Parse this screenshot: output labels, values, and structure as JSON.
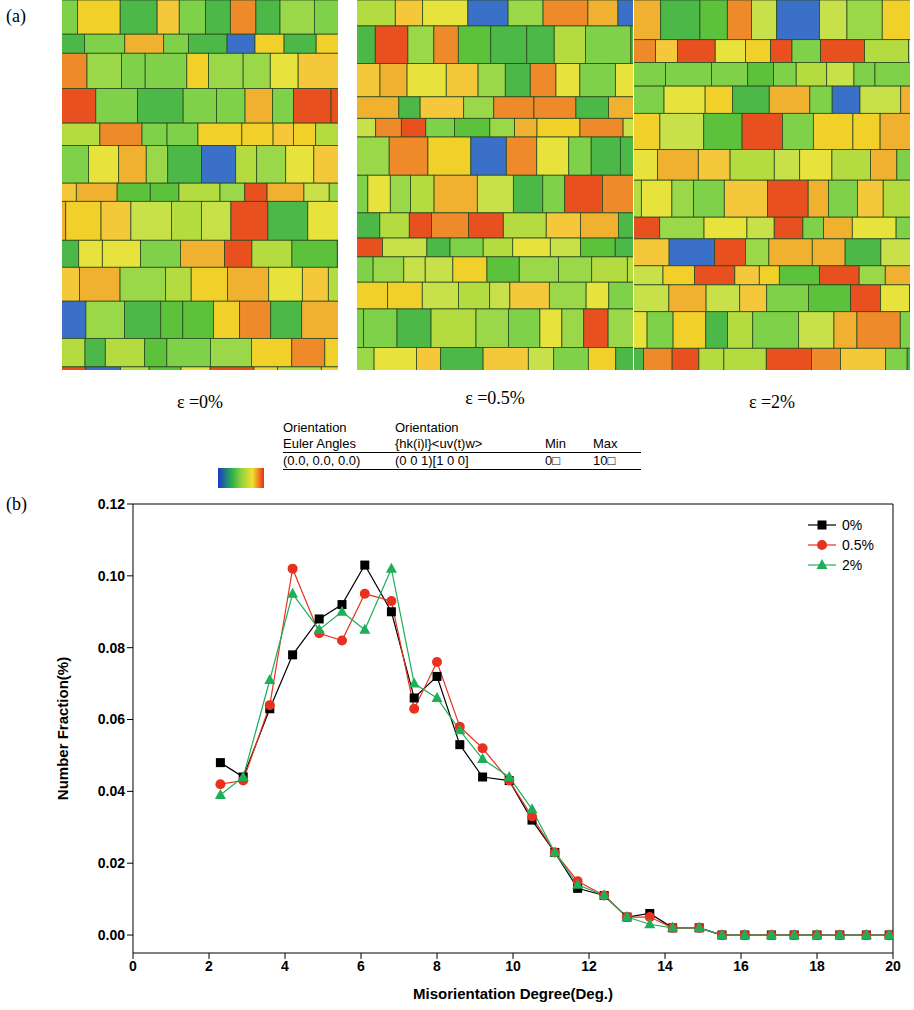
{
  "figure": {
    "panel_a": {
      "label": "(a)",
      "maps": [
        {
          "label": "ε =0%"
        },
        {
          "label": "ε =0.5%"
        },
        {
          "label": "ε =2%"
        }
      ],
      "color_key": {
        "header_top": [
          "Orientation",
          "Orientation"
        ],
        "header": [
          "Euler Angles",
          "{hk(i)l}<uv(t)w>",
          "Min",
          "Max"
        ],
        "row": [
          "(0.0, 0.0, 0.0)",
          "(0 0 1)[1 0 0]",
          "0□",
          "10□"
        ]
      }
    },
    "panel_b": {
      "label": "(b)"
    }
  },
  "chart_data": {
    "type": "line",
    "x_label": "Misorientation Degree(Deg.)",
    "y_label": "Number Fraction(%)",
    "x": [
      2.3,
      2.9,
      3.6,
      4.2,
      4.9,
      5.5,
      6.1,
      6.8,
      7.4,
      8.0,
      8.6,
      9.2,
      9.9,
      10.5,
      11.1,
      11.7,
      12.4,
      13.0,
      13.6,
      14.2,
      14.9,
      15.5,
      16.1,
      16.8,
      17.4,
      18.0,
      18.6,
      19.3,
      19.9
    ],
    "series": [
      {
        "name": "0%",
        "color": "#000000",
        "marker": "square",
        "values": [
          0.048,
          0.044,
          0.063,
          0.078,
          0.088,
          0.092,
          0.103,
          0.09,
          0.066,
          0.072,
          0.053,
          0.044,
          0.043,
          0.032,
          0.023,
          0.013,
          0.011,
          0.005,
          0.006,
          0.002,
          0.002,
          0,
          0,
          0,
          0,
          0,
          0,
          0,
          0
        ]
      },
      {
        "name": "0.5%",
        "color": "#e8321e",
        "marker": "circle",
        "values": [
          0.042,
          0.043,
          0.064,
          0.102,
          0.084,
          0.082,
          0.095,
          0.093,
          0.063,
          0.076,
          0.058,
          0.052,
          0.043,
          0.033,
          0.023,
          0.015,
          0.011,
          0.005,
          0.005,
          0.002,
          0.002,
          0,
          0,
          0,
          0,
          0,
          0,
          0,
          0
        ]
      },
      {
        "name": "2%",
        "color": "#1fae5a",
        "marker": "triangle",
        "values": [
          0.039,
          0.044,
          0.071,
          0.095,
          0.085,
          0.09,
          0.085,
          0.102,
          0.07,
          0.066,
          0.057,
          0.049,
          0.044,
          0.035,
          0.023,
          0.014,
          0.011,
          0.005,
          0.003,
          0.002,
          0.002,
          0,
          0,
          0,
          0,
          0,
          0,
          0,
          0
        ]
      }
    ],
    "xlim": [
      0,
      20
    ],
    "xticks": [
      0,
      2,
      4,
      6,
      8,
      10,
      12,
      14,
      16,
      18,
      20
    ],
    "ylim": [
      -0.005,
      0.12
    ],
    "yticks": [
      {
        "value": 0,
        "label": "0.00"
      },
      0.02,
      0.04,
      0.06,
      0.08,
      {
        "value": 0.1,
        "label": "0.10"
      },
      0.12
    ],
    "legend": "upper right",
    "grid": false
  }
}
